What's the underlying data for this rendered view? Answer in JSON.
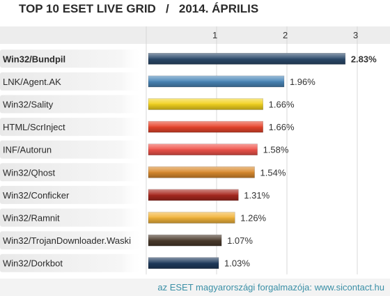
{
  "header": {
    "title": "TOP 10 ESET LIVE GRID   /   2014. ÁPRILIS"
  },
  "footer": {
    "text": "az ESET magyarországi forgalmazója: www.sicontact.hu"
  },
  "chart_data": {
    "type": "bar",
    "orientation": "horizontal",
    "title": "TOP 10 ESET LIVE GRID   /   2014. ÁPRILIS",
    "xlabel": "",
    "ylabel": "",
    "xlim": [
      0,
      3.2
    ],
    "x_ticks": [
      "1",
      "2",
      "3"
    ],
    "grid": true,
    "categories": [
      "Win32/Bundpil",
      "LNK/Agent.AK",
      "Win32/Sality",
      "HTML/ScrInject",
      "INF/Autorun",
      "Win32/Qhost",
      "Win32/Conficker",
      "Win32/Ramnit",
      "Win32/TrojanDownloader.Waski",
      "Win32/Dorkbot"
    ],
    "values": [
      2.83,
      1.96,
      1.66,
      1.66,
      1.58,
      1.54,
      1.31,
      1.26,
      1.07,
      1.03
    ],
    "data_labels": [
      "2.83%",
      "1.96%",
      "1.66%",
      "1.66%",
      "1.58%",
      "1.54%",
      "1.31%",
      "1.26%",
      "1.07%",
      "1.03%"
    ],
    "colors": [
      "#2c4a6b",
      "#4a86b8",
      "#f2d21f",
      "#e8452c",
      "#f0534a",
      "#d98a2e",
      "#a8281f",
      "#f2b43a",
      "#4a3a2c",
      "#1e3a5c"
    ],
    "highlighted_index": 0
  }
}
